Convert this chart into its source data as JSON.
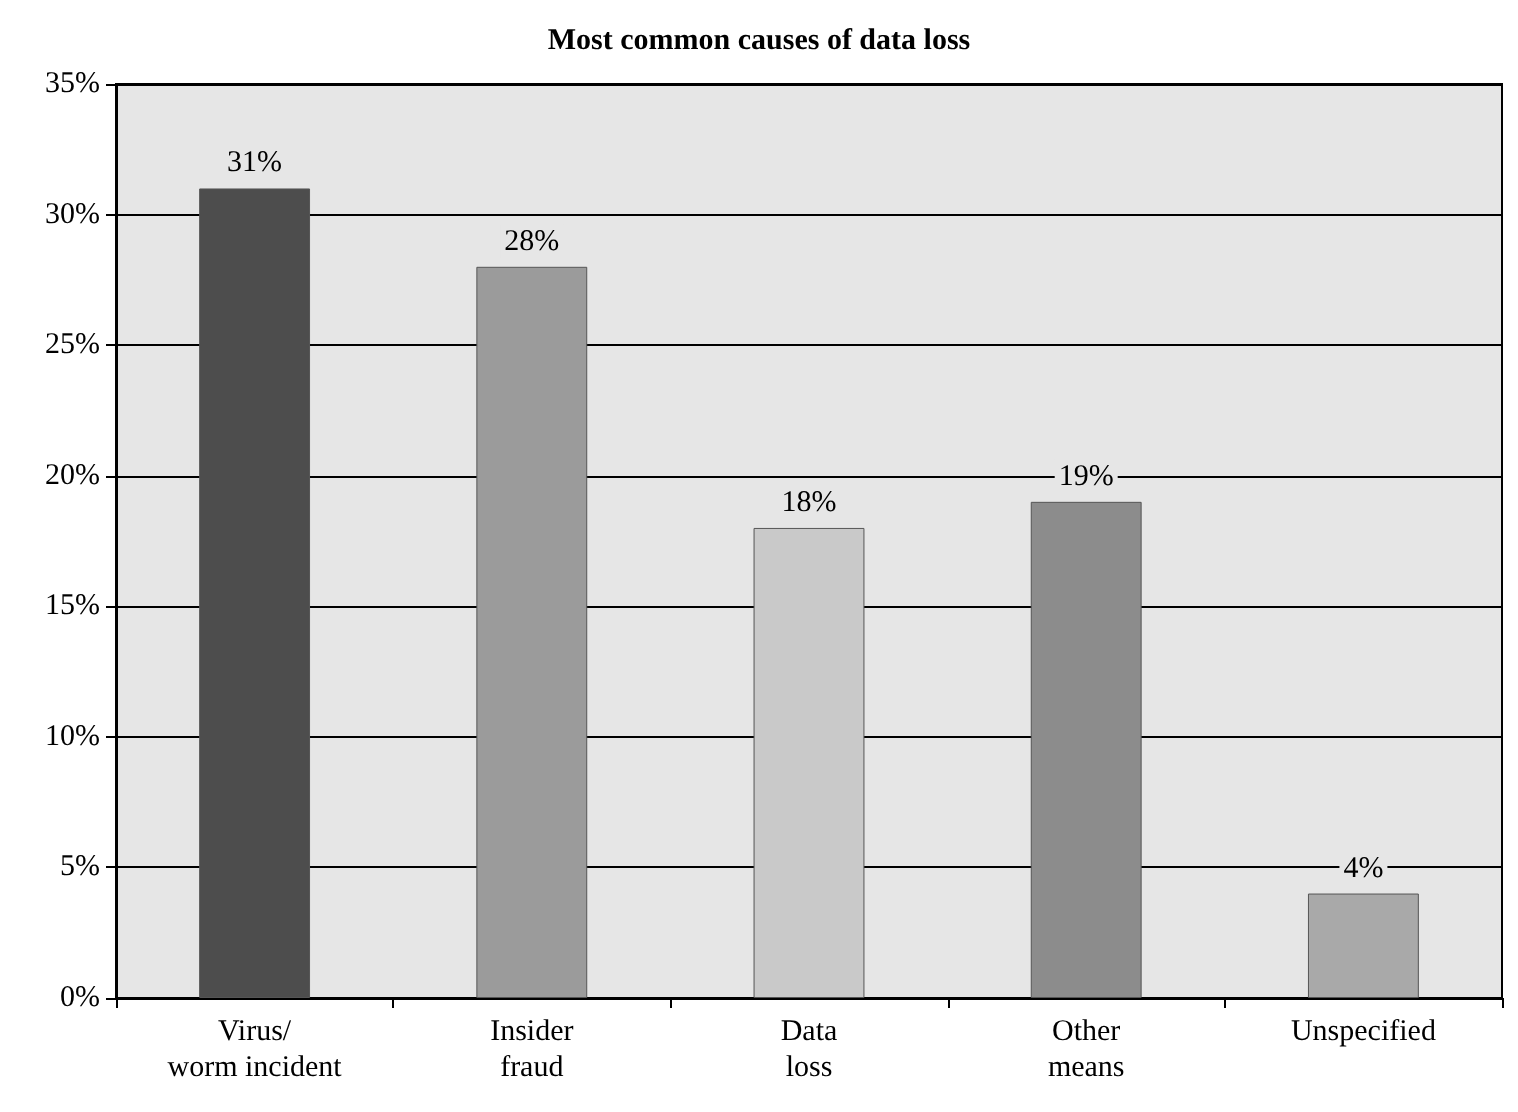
{
  "chart_data": {
    "type": "bar",
    "title": "Most common causes of data loss",
    "categories": [
      "Virus/\nworm incident",
      "Insider\nfraud",
      "Data\nloss",
      "Other\nmeans",
      "Unspecified"
    ],
    "values": [
      31,
      28,
      18,
      19,
      4
    ],
    "colors": [
      "#4d4d4d",
      "#9b9b9b",
      "#c9c9c9",
      "#8c8c8c",
      "#a9a9a9"
    ],
    "value_labels": [
      "31%",
      "28%",
      "18%",
      "19%",
      "4%"
    ],
    "ylim": [
      0,
      35
    ],
    "yticks": [
      {
        "value": 0,
        "label": "0%"
      },
      {
        "value": 5,
        "label": "5%"
      },
      {
        "value": 10,
        "label": "10%"
      },
      {
        "value": 15,
        "label": "15%"
      },
      {
        "value": 20,
        "label": "20%"
      },
      {
        "value": 25,
        "label": "25%"
      },
      {
        "value": 30,
        "label": "30%"
      },
      {
        "value": 35,
        "label": "35%"
      }
    ],
    "grid": "y"
  }
}
